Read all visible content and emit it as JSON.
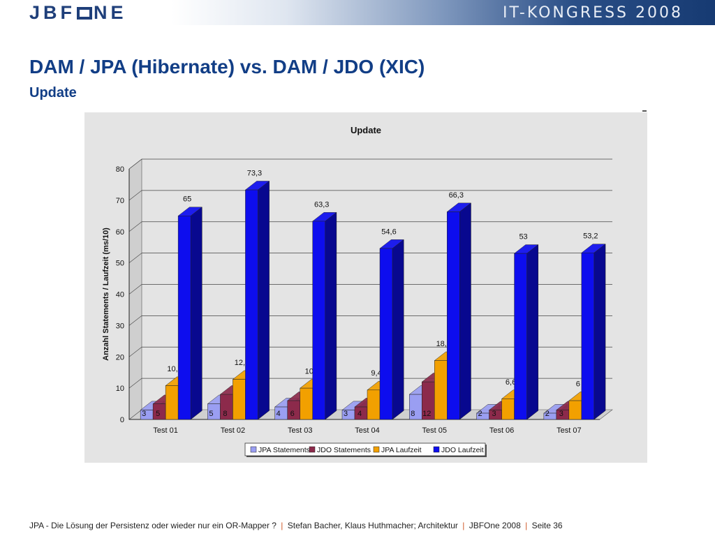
{
  "header": {
    "logo_text": "JBF",
    "logo_text_end": "NE",
    "congress": "IT-KONGRESS 2008"
  },
  "title": "DAM / JPA (Hibernate) vs. DAM / JDO (XIC)",
  "subtitle": "Update",
  "footer": {
    "part1": "JPA - Die Lösung der Persistenz oder wieder nur ein OR-Mapper ?",
    "part2": "Stefan Bacher, Klaus Huthmacher; Architektur",
    "part3": "JBFOne 2008",
    "part4": "Seite 36",
    "separator": "|"
  },
  "colors": {
    "title": "#123e86",
    "jpa_statements": "#9a9ef2",
    "jdo_statements": "#8c2a4b",
    "jpa_laufzeit": "#f2a000",
    "jdo_laufzeit": "#0d0dee",
    "chart_bg": "#e4e4e4"
  },
  "chart_data": {
    "type": "bar",
    "title": "Update",
    "ylabel": "Anzahl Statements / Laufzeit (ms/10)",
    "xlabel": "",
    "ylim": [
      0,
      80
    ],
    "yticks": [
      "0",
      "10",
      "20",
      "30",
      "40",
      "50",
      "60",
      "70",
      "80"
    ],
    "grid": true,
    "legend_position": "bottom",
    "categories": [
      "Test 01",
      "Test 02",
      "Test 03",
      "Test 04",
      "Test 05",
      "Test 06",
      "Test 07"
    ],
    "series": [
      {
        "name": "JPA Statements",
        "values": [
          3,
          5,
          4,
          3,
          8,
          2,
          2
        ],
        "labels": [
          "3",
          "5",
          "4",
          "3",
          "8",
          "2",
          "2"
        ]
      },
      {
        "name": "JDO Statements",
        "values": [
          5,
          8,
          6,
          4,
          12,
          3,
          3
        ],
        "labels": [
          "5",
          "8",
          "6",
          "4",
          "12",
          "3",
          "3"
        ]
      },
      {
        "name": "JPA Laufzeit",
        "values": [
          10.8,
          12.8,
          10,
          9.4,
          18.8,
          6.6,
          6
        ],
        "labels": [
          "10,8",
          "12,8",
          "10",
          "9,4",
          "18,8",
          "6,6",
          "6"
        ]
      },
      {
        "name": "JDO Laufzeit",
        "values": [
          65,
          73.3,
          63.3,
          54.6,
          66.3,
          53,
          53.2
        ],
        "labels": [
          "65",
          "73,3",
          "63,3",
          "54,6",
          "66,3",
          "53",
          "53,2"
        ]
      }
    ]
  }
}
